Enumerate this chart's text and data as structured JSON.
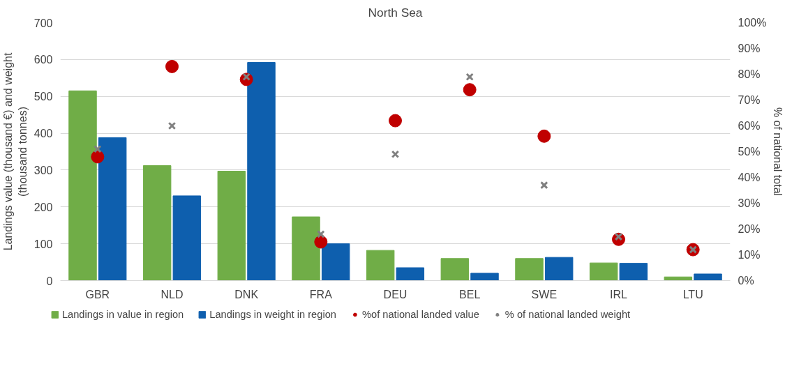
{
  "chart_data": {
    "type": "bar",
    "title": "North Sea",
    "categories": [
      "GBR",
      "NLD",
      "DNK",
      "FRA",
      "DEU",
      "BEL",
      "SWE",
      "IRL",
      "LTU"
    ],
    "series": [
      {
        "name": "Landings in value in region",
        "color": "#70ad47",
        "values": [
          515,
          312,
          297,
          173,
          82,
          60,
          60,
          48,
          10
        ]
      },
      {
        "name": "Landings in weight in region",
        "color": "#0e5fae",
        "values": [
          388,
          230,
          592,
          100,
          35,
          20,
          63,
          47,
          18
        ]
      },
      {
        "name": "%of national landed value",
        "type": "scatter",
        "axis": "y2",
        "marker": "circle",
        "color": "#c00000",
        "values": [
          48,
          83,
          78,
          15,
          62,
          74,
          56,
          16,
          12
        ]
      },
      {
        "name": "% of national landed weight",
        "type": "scatter",
        "axis": "y2",
        "marker": "cross",
        "color": "#808080",
        "values": [
          51,
          60,
          79,
          18,
          49,
          79,
          37,
          17,
          12
        ]
      }
    ],
    "ylabel": "Landings value (thousand €) and weight\n(thousand tonnes)",
    "y2label": "% of national total",
    "ylim": [
      0,
      700
    ],
    "yticks": [
      0,
      100,
      200,
      300,
      400,
      500,
      600,
      700
    ],
    "y2lim": [
      0,
      100
    ],
    "y2ticks": [
      {
        "value": 0,
        "label": "0%"
      },
      {
        "value": 10,
        "label": "10%"
      },
      {
        "value": 20,
        "label": "20%"
      },
      {
        "value": 30,
        "label": "30%"
      },
      {
        "value": 40,
        "label": "40%"
      },
      {
        "value": 50,
        "label": "50%"
      },
      {
        "value": 60,
        "label": "60%"
      },
      {
        "value": 70,
        "label": "70%"
      },
      {
        "value": 80,
        "label": "80%"
      },
      {
        "value": 90,
        "label": "90%"
      },
      {
        "value": 100,
        "label": "100%"
      }
    ],
    "grid": "y",
    "legend": "bottom"
  }
}
